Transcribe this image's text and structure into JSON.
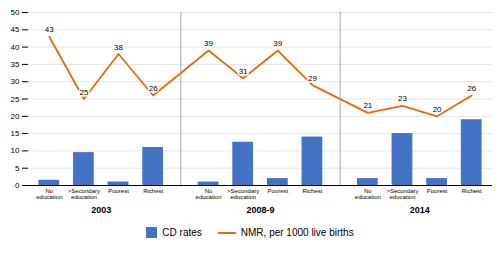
{
  "chart_data": {
    "type": "bar",
    "categories": [
      "No\neducation",
      ">Secondary\neducation",
      "Poorest",
      "Richest",
      "No\neducation",
      ">Secondary\neducation",
      "Poorest",
      "Richest",
      "No\neducation",
      ">Secondary\neducation",
      "Poorest",
      "Richest"
    ],
    "group_labels": [
      "2003",
      "2008-9",
      "2014"
    ],
    "series": [
      {
        "name": "CD rates",
        "type": "bar",
        "color": "#4472c4",
        "values": [
          1.5,
          9.5,
          1.0,
          11.0,
          1.0,
          12.5,
          2.0,
          14.0,
          2.0,
          15.0,
          2.0,
          19.0
        ]
      },
      {
        "name": "NMR, per 1000 live births",
        "type": "line",
        "color": "#e36c09",
        "data_labels": true,
        "values": [
          43,
          25,
          38,
          26,
          39,
          31,
          39,
          29,
          21,
          23,
          20,
          26
        ]
      }
    ],
    "ylim": [
      0,
      50
    ],
    "yticks": [
      0,
      5,
      10,
      15,
      20,
      25,
      30,
      35,
      40,
      45,
      50
    ],
    "grid": true,
    "legend": "bottom"
  }
}
